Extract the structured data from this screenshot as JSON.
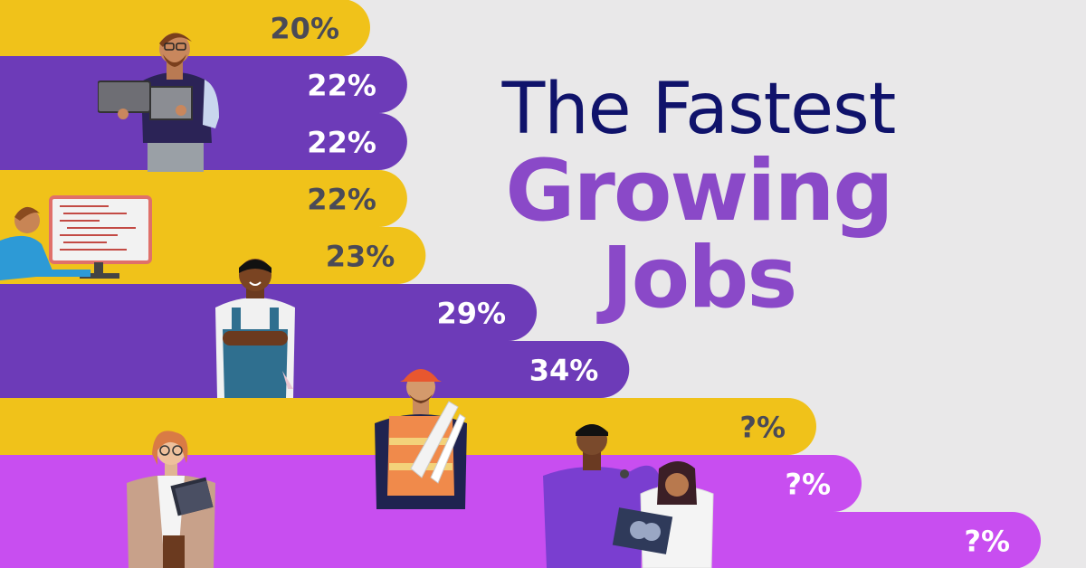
{
  "header": {
    "line1": "The Fastest",
    "line2": "Growing",
    "line3": "Jobs"
  },
  "colors": {
    "background": "#e9e8e9",
    "yellow": "#f0c21a",
    "purple": "#6d3bb8",
    "magenta": "#c84ef0",
    "label": "#4a4a57",
    "label_light": "#ffffff",
    "title_dark": "#10136b",
    "title_accent": "#8a49c8"
  },
  "chart_data": {
    "type": "bar",
    "orientation": "horizontal",
    "categories": [
      "",
      "",
      "",
      "",
      "",
      "",
      "",
      "",
      "",
      ""
    ],
    "values": [
      20,
      22,
      22,
      22,
      23,
      29,
      34,
      null,
      null,
      null
    ],
    "labels": [
      "20%",
      "22%",
      "22%",
      "22%",
      "23%",
      "29%",
      "34%",
      "?%",
      "?%",
      "?%"
    ],
    "bar_colors": [
      "yellow",
      "purple",
      "purple",
      "yellow",
      "yellow",
      "purple",
      "purple",
      "yellow",
      "magenta",
      "magenta"
    ],
    "unit": "%",
    "title": "The Fastest Growing Jobs",
    "xlabel": "",
    "ylabel": "",
    "legend": "none",
    "grid": false
  },
  "illustrations": [
    {
      "name": "laptop-worker-illustration"
    },
    {
      "name": "programmer-illustration"
    },
    {
      "name": "mechanic-illustration"
    },
    {
      "name": "construction-worker-illustration"
    },
    {
      "name": "teacher-illustration"
    },
    {
      "name": "healthcare-workers-illustration"
    }
  ]
}
